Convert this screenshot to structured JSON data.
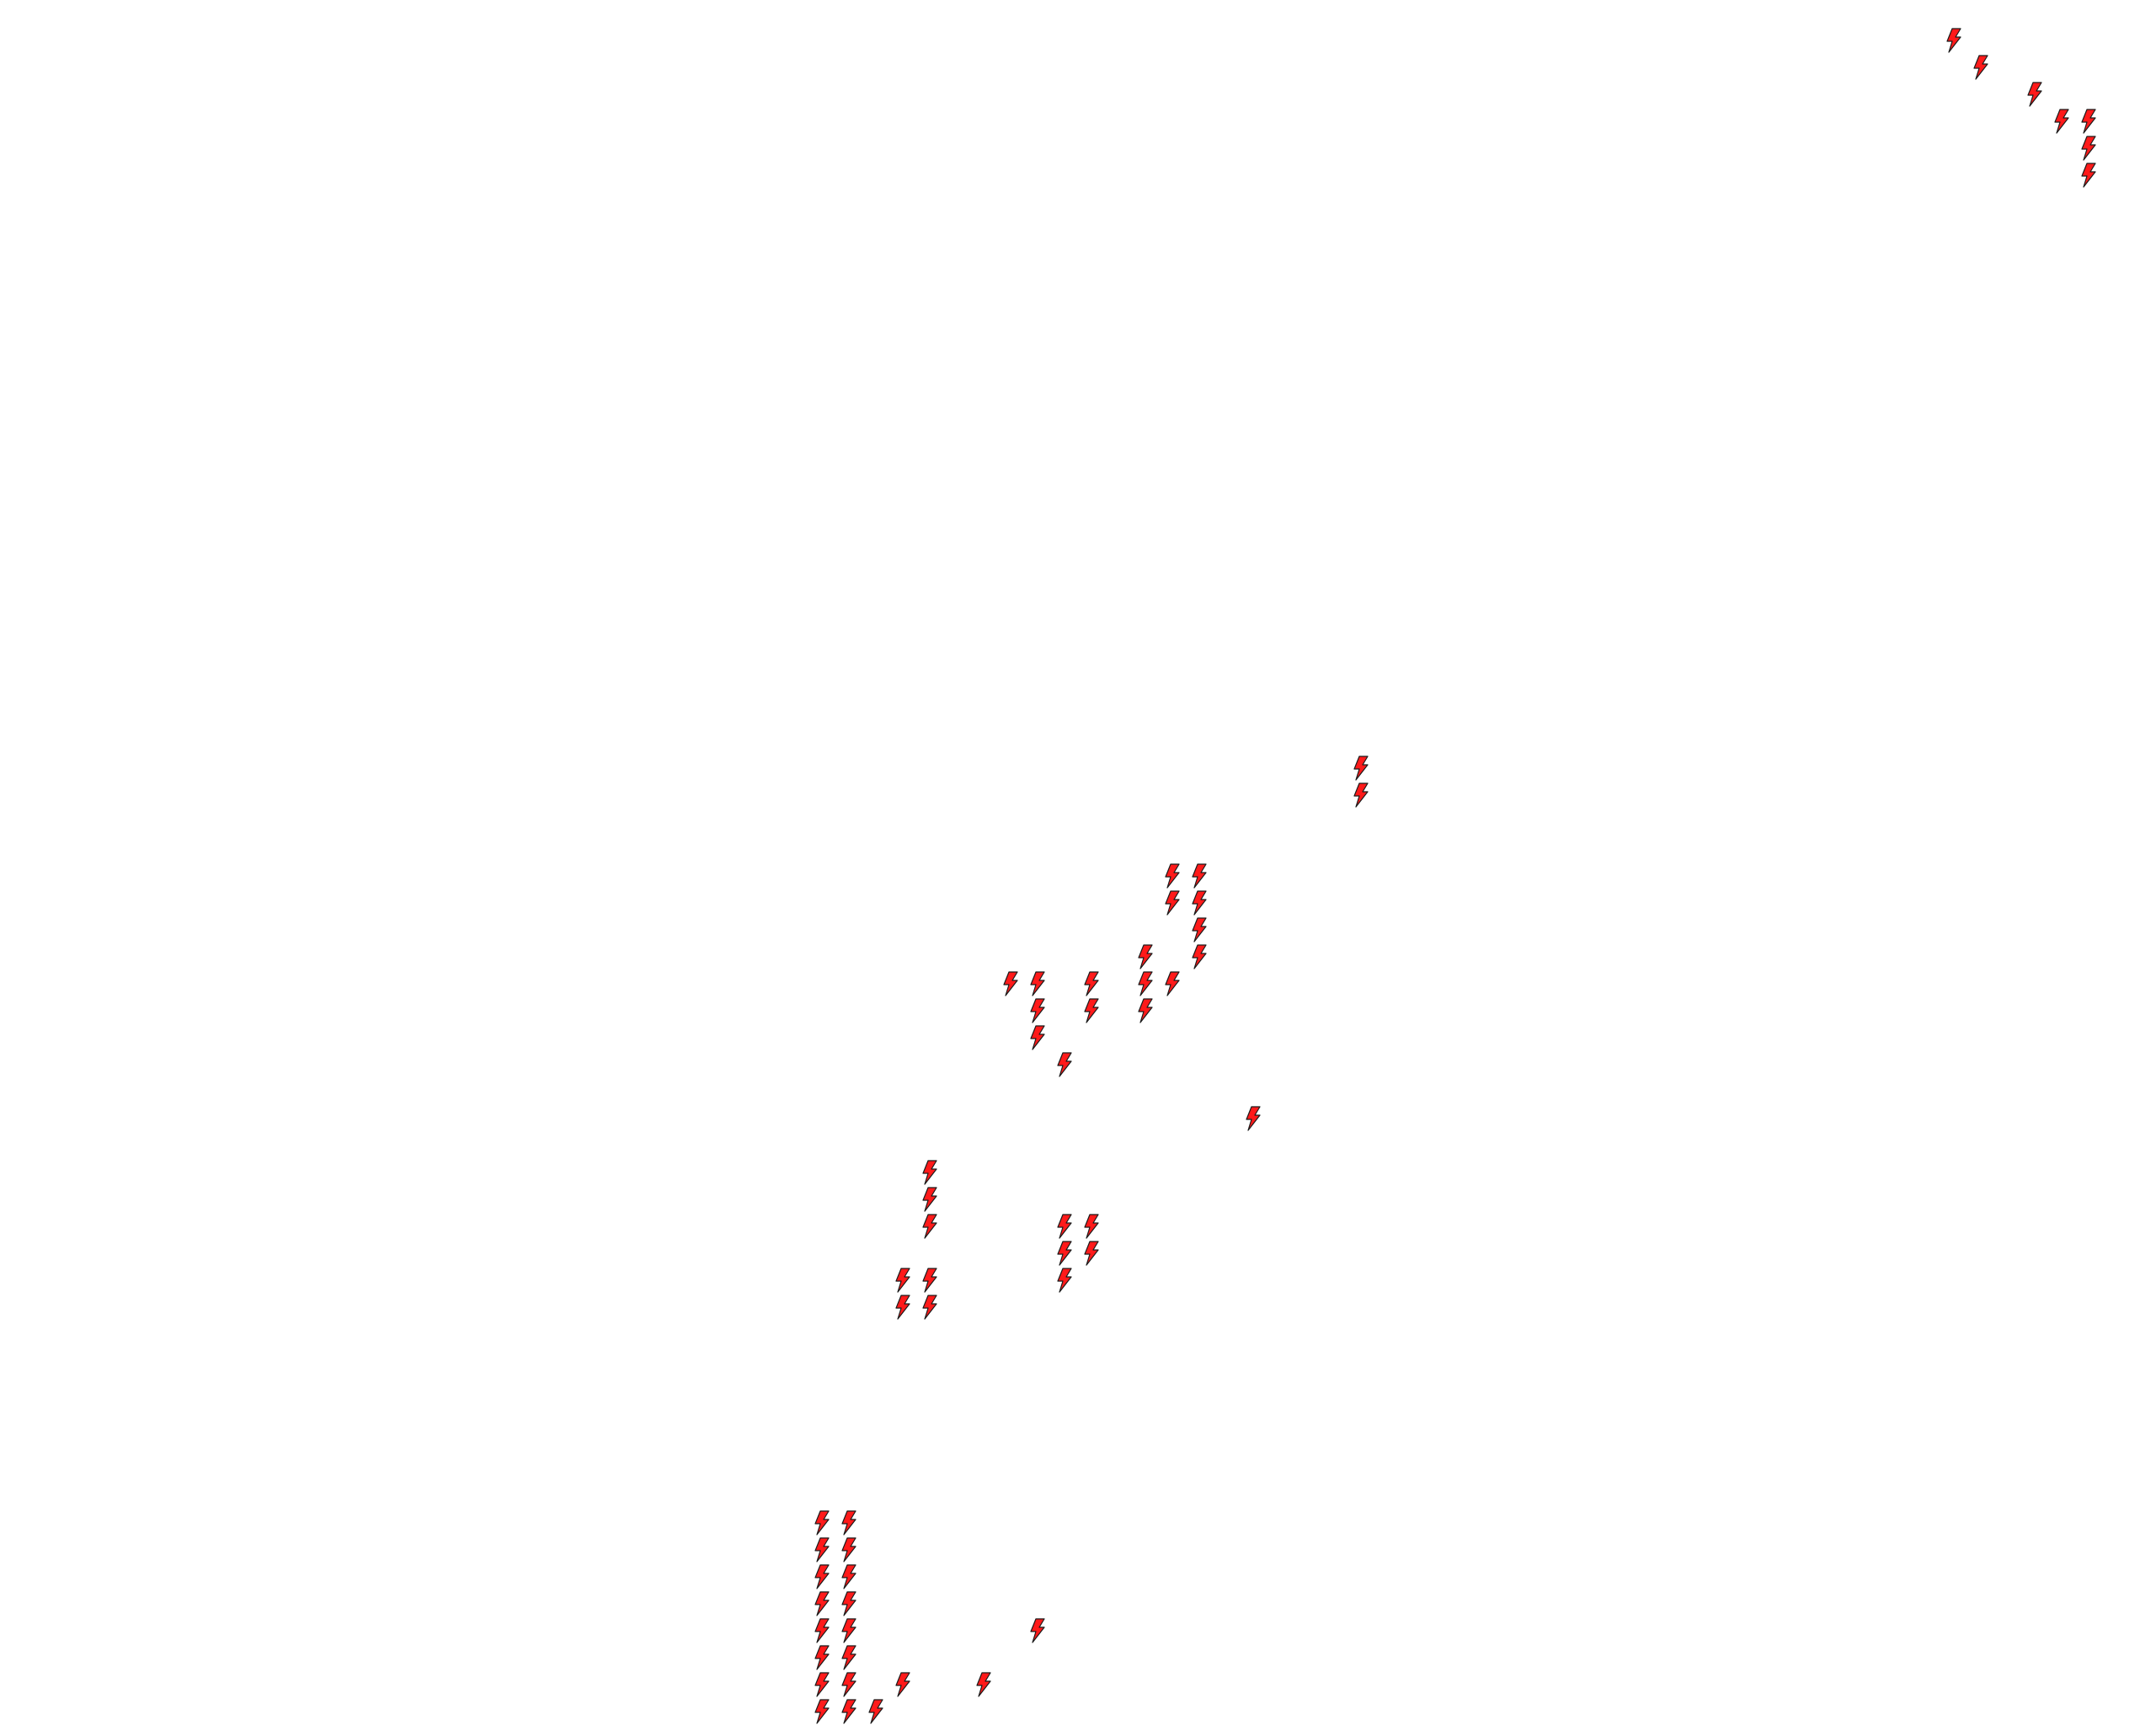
{
  "canvas": {
    "background": "#ffffff"
  },
  "markers": {
    "icon": "lightning-bolt-icon",
    "fill_color": "#ff1a1a",
    "stroke_color": "#1a1a1a"
  }
}
